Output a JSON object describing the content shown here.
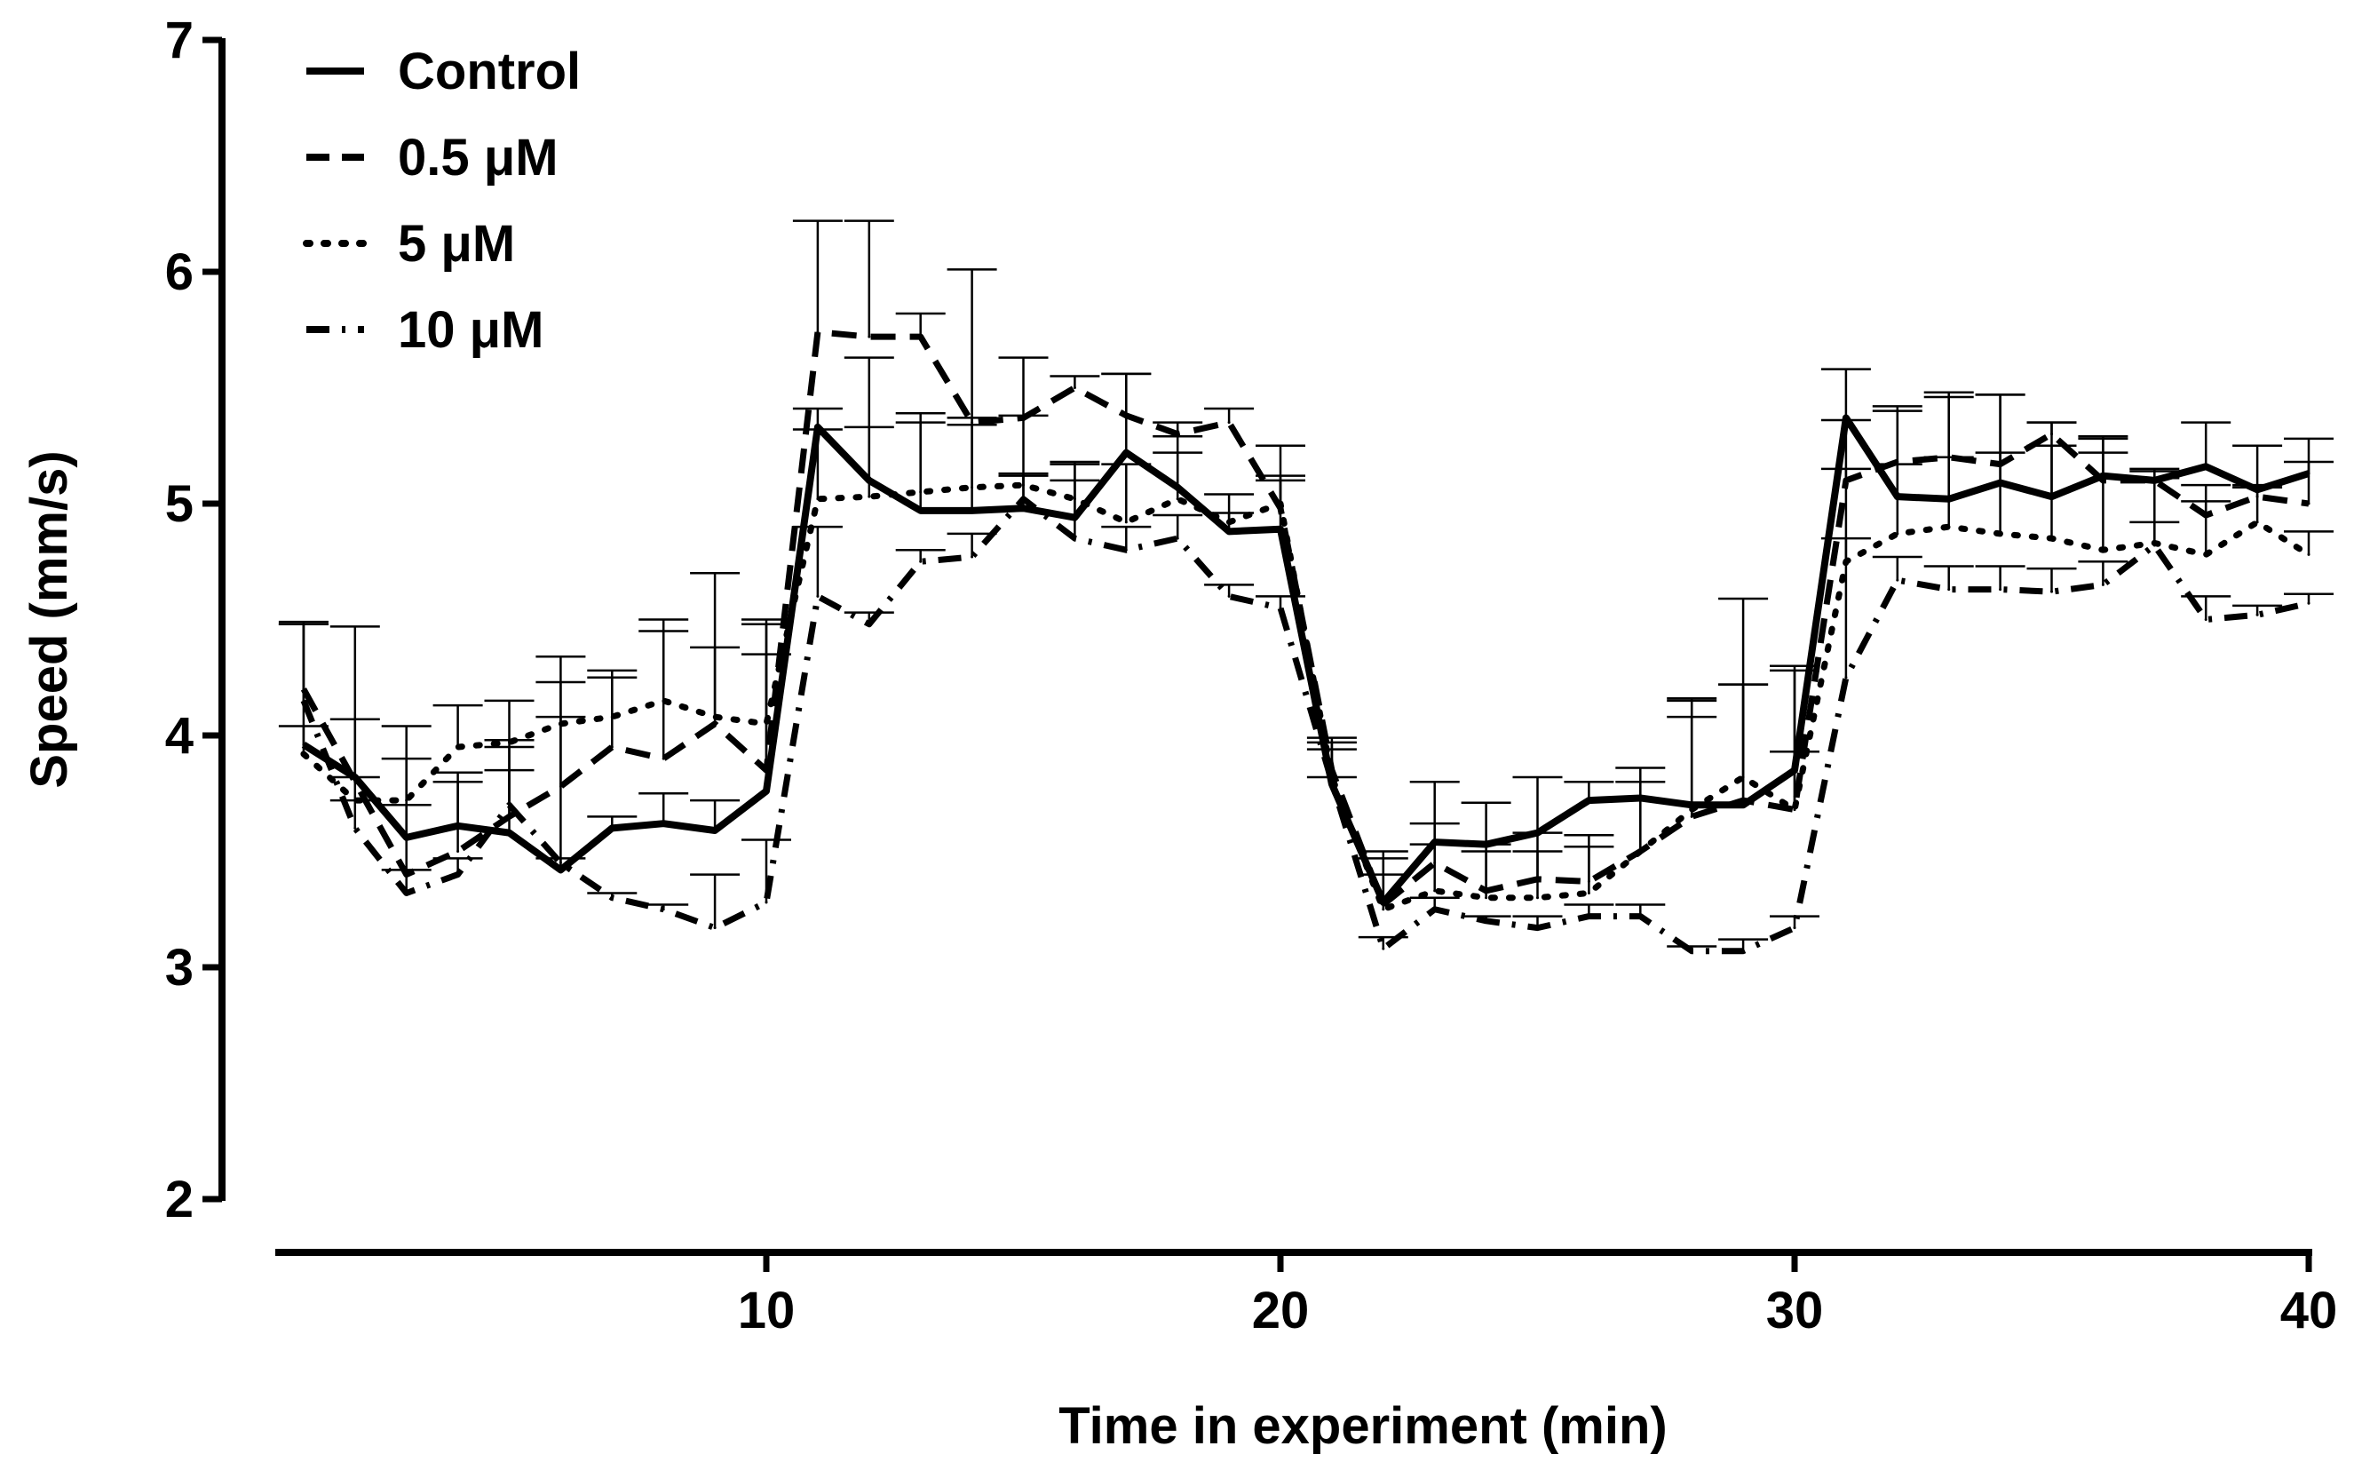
{
  "chart_data": {
    "type": "line",
    "title": "",
    "xlabel": "Time in experiment (min)",
    "ylabel": "Speed (mm/s)",
    "xlim": [
      0,
      40
    ],
    "ylim": [
      2,
      7
    ],
    "xticks": [
      10,
      20,
      30,
      40
    ],
    "yticks": [
      2,
      3,
      4,
      5,
      6,
      7
    ],
    "grid": false,
    "legend_position": "top-left",
    "x": [
      1,
      2,
      3,
      4,
      5,
      6,
      7,
      8,
      9,
      10,
      11,
      12,
      13,
      14,
      15,
      16,
      17,
      18,
      19,
      20,
      21,
      22,
      23,
      24,
      25,
      26,
      27,
      28,
      29,
      30,
      31,
      32,
      33,
      34,
      35,
      36,
      37,
      38,
      39,
      40
    ],
    "series": [
      {
        "name": "Control",
        "style": "solid",
        "values": [
          3.96,
          3.82,
          3.56,
          3.61,
          3.58,
          3.42,
          3.6,
          3.62,
          3.59,
          3.76,
          5.33,
          5.1,
          4.97,
          4.97,
          4.98,
          4.94,
          5.22,
          5.07,
          4.88,
          4.89,
          3.79,
          3.28,
          3.54,
          3.53,
          3.58,
          3.72,
          3.73,
          3.7,
          3.7,
          3.85,
          5.37,
          5.03,
          5.02,
          5.09,
          5.03,
          5.12,
          5.1,
          5.16,
          5.06,
          5.13
        ],
        "errors": [
          0.52,
          0.65,
          0.48,
          0.23,
          0.4,
          0.92,
          0.05,
          0.13,
          0.13,
          0.72,
          0.08,
          0.53,
          0.42,
          0.37,
          0.15,
          0.24,
          0.34,
          0.22,
          0.08,
          0.36,
          0.2,
          0.22,
          0.26,
          0.18,
          0.24,
          0.08,
          0.13,
          0.46,
          0.89,
          0.45,
          0.21,
          0.39,
          0.46,
          0.38,
          0.32,
          0.17,
          0.04,
          0.19,
          0.19,
          0.15
        ]
      },
      {
        "name": "0.5 μM",
        "style": "dashed",
        "values": [
          4.2,
          3.8,
          3.4,
          3.5,
          3.65,
          3.78,
          3.95,
          3.9,
          4.05,
          3.85,
          5.74,
          5.72,
          5.72,
          5.35,
          5.37,
          5.5,
          5.38,
          5.3,
          5.35,
          4.98,
          3.85,
          3.27,
          3.45,
          3.33,
          3.38,
          3.37,
          3.5,
          3.65,
          3.72,
          3.68,
          5.1,
          5.18,
          5.2,
          5.17,
          5.3,
          5.1,
          5.1,
          4.95,
          5.03,
          5.0
        ],
        "errors": [
          0.28,
          0.27,
          0.3,
          0.3,
          0.3,
          0.3,
          0.3,
          0.6,
          0.65,
          0.65,
          0.48,
          0.5,
          0.1,
          0.66,
          0.26,
          0.05,
          0.18,
          0.05,
          0.06,
          0.12,
          0.12,
          0.2,
          0.17,
          0.2,
          0.2,
          0.2,
          0.22,
          0.5,
          0.5,
          0.6,
          0.26,
          0.22,
          0.26,
          0.3,
          0.05,
          0.18,
          0.05,
          0.06,
          0.05,
          0.18
        ]
      },
      {
        "name": "5 μM",
        "style": "dotted",
        "values": [
          3.92,
          3.72,
          3.72,
          3.95,
          3.97,
          4.05,
          4.08,
          4.15,
          4.08,
          4.05,
          5.02,
          5.03,
          5.05,
          5.07,
          5.08,
          5.02,
          4.92,
          5.02,
          4.92,
          5.0,
          3.82,
          3.25,
          3.33,
          3.3,
          3.3,
          3.32,
          3.5,
          3.68,
          3.82,
          3.68,
          4.75,
          4.87,
          4.9,
          4.87,
          4.85,
          4.8,
          4.83,
          4.78,
          4.92,
          4.78
        ],
        "errors": [
          0.12,
          0.1,
          0.18,
          0.18,
          0.18,
          0.18,
          0.2,
          0.3,
          0.3,
          0.3,
          0.3,
          0.3,
          0.3,
          0.3,
          0.3,
          0.15,
          0.25,
          0.2,
          0.12,
          0.12,
          0.12,
          0.15,
          0.2,
          0.2,
          0.2,
          0.2,
          0.3,
          0.4,
          0.4,
          0.25,
          0.4,
          0.3,
          0.3,
          0.35,
          0.4,
          0.42,
          0.28,
          0.3,
          0.15,
          0.1
        ]
      },
      {
        "name": "10 μM",
        "style": "dashdot",
        "values": [
          4.15,
          3.6,
          3.32,
          3.4,
          3.7,
          3.45,
          3.3,
          3.25,
          3.17,
          3.28,
          4.6,
          4.48,
          4.75,
          4.77,
          5.02,
          4.85,
          4.8,
          4.85,
          4.6,
          4.55,
          3.8,
          3.08,
          3.25,
          3.2,
          3.17,
          3.22,
          3.22,
          3.07,
          3.07,
          3.17,
          4.25,
          4.67,
          4.63,
          4.63,
          4.62,
          4.65,
          4.82,
          4.5,
          4.52,
          4.57
        ],
        "errors": [
          0.34,
          0.12,
          0.1,
          0.07,
          0.15,
          0.02,
          0.02,
          0.02,
          0.23,
          0.27,
          0.3,
          0.05,
          0.05,
          0.1,
          0.1,
          0.25,
          0.1,
          0.1,
          0.05,
          0.05,
          0.02,
          0.05,
          0.05,
          0.02,
          0.05,
          0.05,
          0.05,
          0.02,
          0.05,
          0.05,
          0.6,
          0.1,
          0.1,
          0.1,
          0.1,
          0.1,
          0.1,
          0.1,
          0.04,
          0.04
        ]
      }
    ]
  }
}
